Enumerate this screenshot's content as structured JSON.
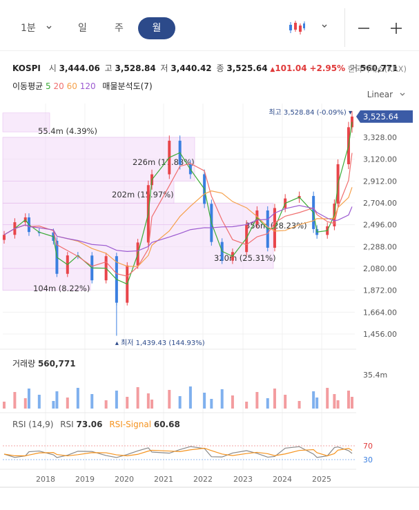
{
  "toolbar": {
    "timeframes": [
      {
        "label": "1분",
        "active": false
      },
      {
        "label": "일",
        "active": false
      },
      {
        "label": "주",
        "active": false
      },
      {
        "label": "월",
        "active": true
      }
    ],
    "icons": [
      "chevron-down-icon",
      "candlestick-icon",
      "minus-icon",
      "plus-icon"
    ]
  },
  "header": {
    "symbol": "KOSPI",
    "open_label": "시",
    "open": "3,444.06",
    "high_label": "고",
    "high": "3,528.84",
    "low_label": "저",
    "low": "3,440.42",
    "close_label": "종",
    "close": "3,525.64",
    "change": "101.04",
    "change_pct": "+2.95%",
    "volume_label": "거",
    "volume": "560,771",
    "exchange": "한국거래소(KRX)"
  },
  "moving_average": {
    "label": "이동평균",
    "periods": [
      {
        "value": "5",
        "color": "#3aaa35"
      },
      {
        "value": "20",
        "color": "#f06e6e"
      },
      {
        "value": "60",
        "color": "#f5a04a"
      },
      {
        "value": "120",
        "color": "#9b59d0"
      }
    ],
    "volume_profile_label": "매물분석도(7)"
  },
  "scale_label": "Linear",
  "colors": {
    "up": "#e8454a",
    "down": "#3a7fe0",
    "accent": "#2c4a8a",
    "profile": "#f3d9f7",
    "ma5": "#3aaa35",
    "ma20": "#f06e6e",
    "ma60": "#f5a04a",
    "ma120": "#9b59d0",
    "rsi": "#888888",
    "rsi_signal": "#f5931e"
  },
  "price_axis": {
    "ticks": [
      "3,328.00",
      "3,120.00",
      "2,912.00",
      "2,704.00",
      "2,496.00",
      "2,288.00",
      "2,080.00",
      "1,872.00",
      "1,664.00",
      "1,456.00"
    ],
    "current": "3,525.64"
  },
  "annotations": {
    "high": "최고 3,528.84 (-0.09%)",
    "low": "최저 1,439.43 (144.93%)"
  },
  "volume_pane": {
    "label": "거래량",
    "value": "560,771",
    "axis_label": "35.4m"
  },
  "rsi_pane": {
    "label": "RSI (14,9)",
    "rsi_label": "RSI",
    "rsi_value": "73.06",
    "signal_label": "RSI-Signal",
    "signal_value": "60.68",
    "level_high": "70",
    "level_low": "30"
  },
  "x_axis": {
    "years": [
      "2018",
      "2019",
      "2020",
      "2021",
      "2022",
      "2023",
      "2024",
      "2025"
    ]
  },
  "chart_data": {
    "type": "candlestick",
    "interval": "monthly",
    "series": [
      {
        "date": "2017-07",
        "close": 2400
      },
      {
        "date": "2017-10",
        "close": 2520
      },
      {
        "date": "2018-01",
        "close": 2566
      },
      {
        "date": "2018-02",
        "close": 2427
      },
      {
        "date": "2018-05",
        "close": 2423
      },
      {
        "date": "2018-09",
        "close": 2343
      },
      {
        "date": "2018-10",
        "close": 2029
      },
      {
        "date": "2019-01",
        "close": 2204
      },
      {
        "date": "2019-04",
        "close": 2203
      },
      {
        "date": "2019-08",
        "close": 1967
      },
      {
        "date": "2019-12",
        "close": 2197
      },
      {
        "date": "2020-03",
        "close": 1754
      },
      {
        "date": "2020-06",
        "close": 2108
      },
      {
        "date": "2020-09",
        "close": 2327
      },
      {
        "date": "2020-12",
        "close": 2873
      },
      {
        "date": "2021-01",
        "close": 2976
      },
      {
        "date": "2021-06",
        "close": 3296
      },
      {
        "date": "2021-09",
        "close": 3068
      },
      {
        "date": "2021-12",
        "close": 2977
      },
      {
        "date": "2022-04",
        "close": 2695
      },
      {
        "date": "2022-06",
        "close": 2332
      },
      {
        "date": "2022-09",
        "close": 2155
      },
      {
        "date": "2022-12",
        "close": 2236
      },
      {
        "date": "2023-04",
        "close": 2501
      },
      {
        "date": "2023-07",
        "close": 2632
      },
      {
        "date": "2023-10",
        "close": 2277
      },
      {
        "date": "2023-12",
        "close": 2655
      },
      {
        "date": "2024-03",
        "close": 2746
      },
      {
        "date": "2024-07",
        "close": 2770
      },
      {
        "date": "2024-11",
        "close": 2455
      },
      {
        "date": "2024-12",
        "close": 2399
      },
      {
        "date": "2025-03",
        "close": 2481
      },
      {
        "date": "2025-05",
        "close": 2697
      },
      {
        "date": "2025-06",
        "close": 3072
      },
      {
        "date": "2025-09",
        "close": 3424
      },
      {
        "date": "2025-10",
        "close": 3525.64
      }
    ],
    "volume_profile": [
      {
        "value": "55.4m",
        "pct": "4.39%",
        "price_from": 3380,
        "price_to": 3560
      },
      {
        "value": "226m",
        "pct": "17.88%",
        "price_from": 2912,
        "price_to": 3328
      },
      {
        "value": "202m",
        "pct": "15.97%",
        "price_from": 2700,
        "price_to": 2912
      },
      {
        "value": "356m",
        "pct": "28.23%",
        "price_from": 2496,
        "price_to": 2700
      },
      {
        "value": "320m",
        "pct": "25.31%",
        "price_from": 2080,
        "price_to": 2496
      },
      {
        "value": "104m",
        "pct": "8.22%",
        "price_from": 1872,
        "price_to": 2080
      }
    ],
    "ylim": [
      1456,
      3560
    ],
    "rsi": {
      "rsi": 73.06,
      "signal": 60.68,
      "levels": [
        70,
        30
      ]
    }
  }
}
